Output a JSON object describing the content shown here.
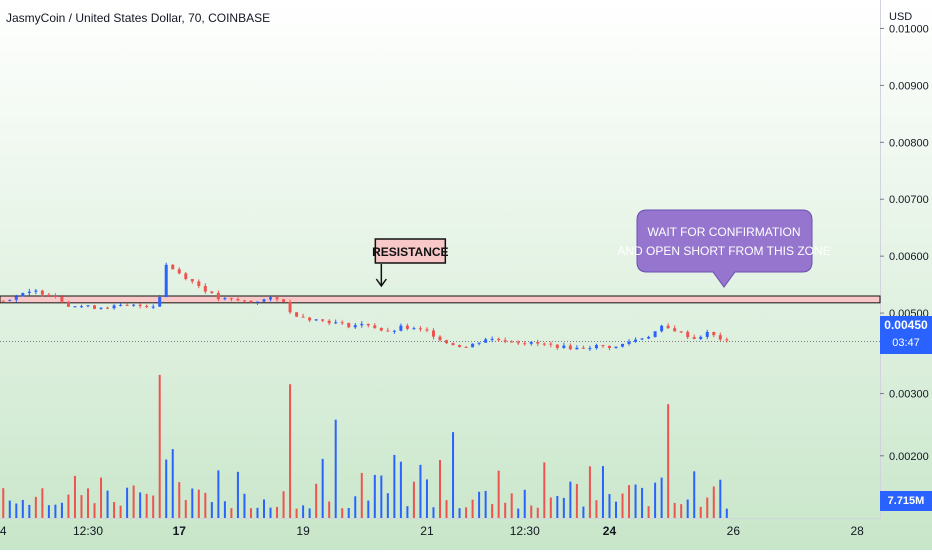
{
  "header": {
    "symbol_title": "JasmyCoin / United States Dollar, 70, COINBASE",
    "currency": "USD"
  },
  "colors": {
    "background_top": "#ffffff",
    "background_bottom": "#c8e6c9",
    "up_candle": "#2962ff",
    "down_candle": "#ef5350",
    "resistance_zone": "#f8c8c8",
    "callout_fill": "#9575cd",
    "price_badge": "#2962ff"
  },
  "price_badge": {
    "value": "0.00450",
    "countdown": "03:47"
  },
  "volume_badge": {
    "value": "7.715M"
  },
  "chart_data": {
    "type": "candlestick",
    "price_axis": {
      "ylim": [
        0.004,
        0.0105
      ],
      "ticks": [
        0.01,
        0.009,
        0.008,
        0.007,
        0.006,
        0.005
      ],
      "tick_labels": [
        "0.01000",
        "0.00900",
        "0.00800",
        "0.00700",
        "0.00600",
        "0.00500"
      ]
    },
    "volume_axis": {
      "ticks": [
        0.003,
        0.002
      ],
      "tick_labels": [
        "0.00300",
        "0.00200"
      ]
    },
    "x_axis": {
      "tick_labels": [
        "4",
        "12:30",
        "17",
        "19",
        "21",
        "12:30",
        "24",
        "26",
        "28"
      ],
      "tick_index": [
        0,
        13,
        27,
        46,
        65,
        80,
        93,
        112,
        131
      ]
    },
    "bars_total": 135,
    "last_bar_index": 111,
    "price_path": [
      [
        0,
        0.00522
      ],
      [
        3,
        0.00533
      ],
      [
        5,
        0.00538
      ],
      [
        8,
        0.0053
      ],
      [
        10,
        0.00514
      ],
      [
        14,
        0.0051
      ],
      [
        20,
        0.00513
      ],
      [
        23,
        0.00513
      ],
      [
        24,
        0.0053
      ],
      [
        25,
        0.00585
      ],
      [
        27,
        0.0057
      ],
      [
        30,
        0.00548
      ],
      [
        33,
        0.00525
      ],
      [
        38,
        0.0052
      ],
      [
        41,
        0.00525
      ],
      [
        43,
        0.00522
      ],
      [
        44,
        0.005
      ],
      [
        47,
        0.0049
      ],
      [
        50,
        0.00485
      ],
      [
        53,
        0.00478
      ],
      [
        56,
        0.0048
      ],
      [
        59,
        0.00465
      ],
      [
        61,
        0.00475
      ],
      [
        65,
        0.00468
      ],
      [
        68,
        0.00448
      ],
      [
        71,
        0.0044
      ],
      [
        74,
        0.00455
      ],
      [
        77,
        0.00452
      ],
      [
        80,
        0.00448
      ],
      [
        83,
        0.00445
      ],
      [
        86,
        0.0044
      ],
      [
        88,
        0.00438
      ],
      [
        91,
        0.00442
      ],
      [
        94,
        0.0044
      ],
      [
        96,
        0.0045
      ],
      [
        99,
        0.0046
      ],
      [
        101,
        0.00475
      ],
      [
        103,
        0.0047
      ],
      [
        106,
        0.00455
      ],
      [
        108,
        0.00465
      ],
      [
        111,
        0.0045
      ]
    ],
    "volume_peaks": [
      [
        24,
        0.0033
      ],
      [
        44,
        0.00315
      ],
      [
        51,
        0.00258
      ],
      [
        69,
        0.00238
      ],
      [
        102,
        0.00283
      ]
    ],
    "resistance_zone": {
      "low": 0.00518,
      "high": 0.0053
    },
    "current_price": 0.0045,
    "annotations": [
      {
        "text": "RESISTANCE",
        "kind": "label",
        "bar_index": 58
      },
      {
        "text": "WAIT FOR CONFIRMATION AND OPEN SHORT FROM THIS ZONE",
        "kind": "callout"
      }
    ]
  }
}
